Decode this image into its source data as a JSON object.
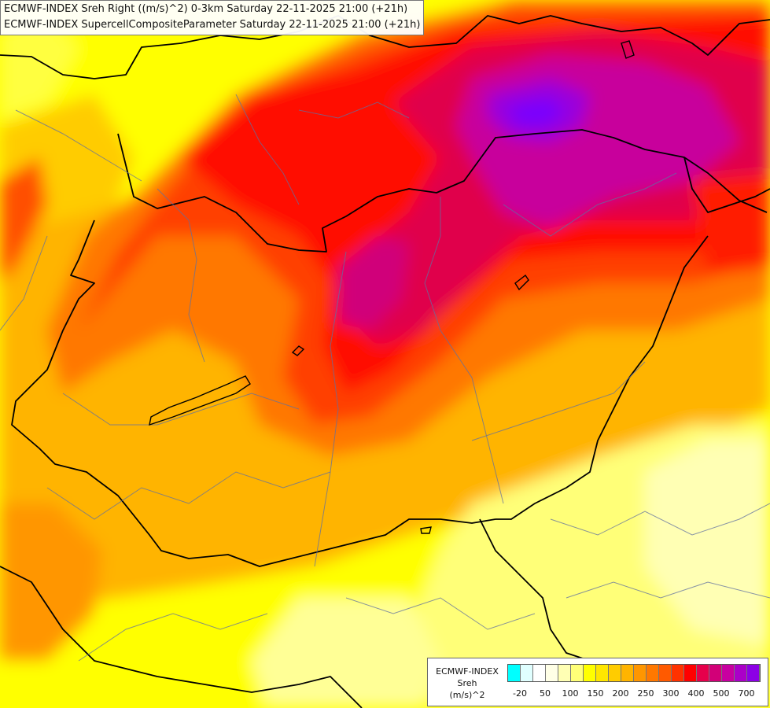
{
  "titles": {
    "line1": "ECMWF-INDEX Sreh Right ((m/s)^2) 0-3km Saturday 22-11-2025 21:00 (+21h)",
    "line2": "ECMWF-INDEX SupercellCompositeParameter Saturday 22-11-2025 21:00 (+21h)"
  },
  "legend": {
    "line1": "ECMWF-INDEX",
    "line2": "Sreh",
    "line3": "(m/s)^2",
    "colors": [
      "#00ffff",
      "#e0ffff",
      "#ffffff",
      "#ffffe6",
      "#ffffb4",
      "#ffff78",
      "#ffff00",
      "#ffe600",
      "#ffcc00",
      "#ffb400",
      "#ff9600",
      "#ff7800",
      "#ff5a00",
      "#ff3200",
      "#ff0000",
      "#e6004b",
      "#d20078",
      "#c800a0",
      "#aa00c8",
      "#8c00e6",
      "#7800ff",
      "#5a00d2",
      "#3c00aa",
      "#000080"
    ],
    "ticks": [
      {
        "label": "-20",
        "pos": 1
      },
      {
        "label": "50",
        "pos": 3
      },
      {
        "label": "100",
        "pos": 5
      },
      {
        "label": "150",
        "pos": 7
      },
      {
        "label": "200",
        "pos": 9
      },
      {
        "label": "250",
        "pos": 11
      },
      {
        "label": "300",
        "pos": 13
      },
      {
        "label": "400",
        "pos": 15
      },
      {
        "label": "500",
        "pos": 17
      },
      {
        "label": "700",
        "pos": 19
      }
    ]
  },
  "field_colors": {
    "c100": "#ffff78",
    "c150": "#ffe600",
    "c200": "#ffb400",
    "c250": "#ff9600",
    "c300": "#ff5a00",
    "c350": "#ff1e00",
    "c400": "#e6004b",
    "c500": "#c800a0",
    "c600": "#9600dc",
    "c700": "#7800ff"
  }
}
